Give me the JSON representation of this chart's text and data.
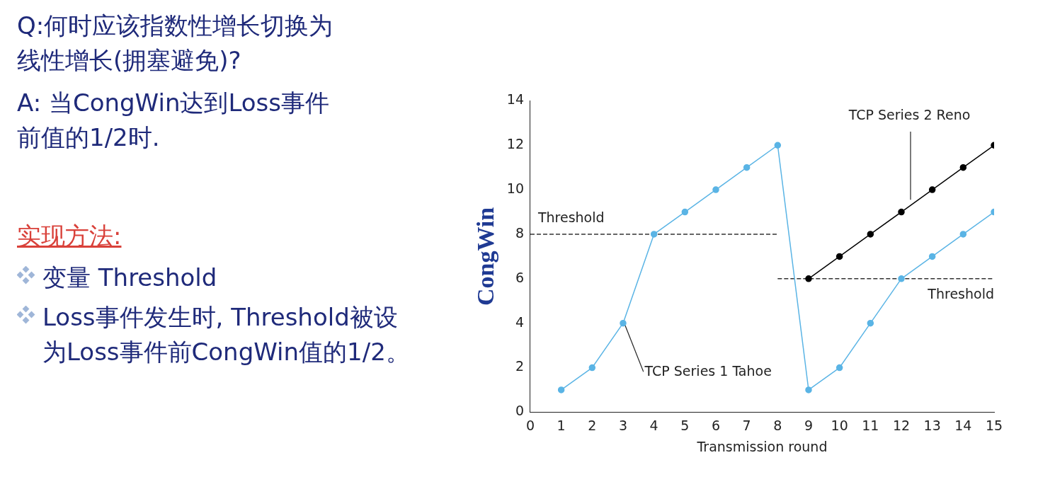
{
  "chart_data": {
    "type": "line",
    "xlabel": "Transmission round",
    "ylabel": "CongWin",
    "xlim": [
      0,
      15
    ],
    "xticks": [
      0,
      1,
      2,
      3,
      4,
      5,
      6,
      7,
      8,
      9,
      10,
      11,
      12,
      13,
      14,
      15
    ],
    "ylim": [
      0,
      14
    ],
    "yticks": [
      0,
      2,
      4,
      6,
      8,
      10,
      12,
      14
    ],
    "grid": false,
    "legend": false,
    "marker": "circle",
    "series": [
      {
        "name": "TCP Series 1 Tahoe",
        "color": "#5ab4e5",
        "x": [
          1,
          2,
          3,
          4,
          5,
          6,
          7,
          8,
          9,
          10,
          11,
          12,
          13,
          14,
          15
        ],
        "values": [
          1,
          2,
          4,
          8,
          9,
          10,
          11,
          12,
          1,
          2,
          4,
          6,
          7,
          8,
          9
        ]
      },
      {
        "name": "TCP Series 2 Reno",
        "color": "#000000",
        "x": [
          9,
          10,
          11,
          12,
          13,
          14,
          15
        ],
        "values": [
          6,
          7,
          8,
          9,
          10,
          11,
          12
        ]
      },
      {
        "name": "Threshold",
        "color": "#333333",
        "line_style": "dashed",
        "marker": "none",
        "x": [
          0,
          8
        ],
        "values": [
          8,
          8
        ]
      },
      {
        "name": "Threshold",
        "color": "#333333",
        "line_style": "dashed",
        "marker": "none",
        "x": [
          8,
          15
        ],
        "values": [
          6,
          6
        ]
      }
    ],
    "annotations": [
      "Q:何时应该指数性增长切换为线性增长(拥塞避免)?",
      "A: 当CongWin达到Loss事件前值的1/2时.",
      "实现方法:",
      "变量 Threshold",
      "Loss事件发生时, Threshold被设为Loss事件前CongWin值的1/2。"
    ]
  }
}
